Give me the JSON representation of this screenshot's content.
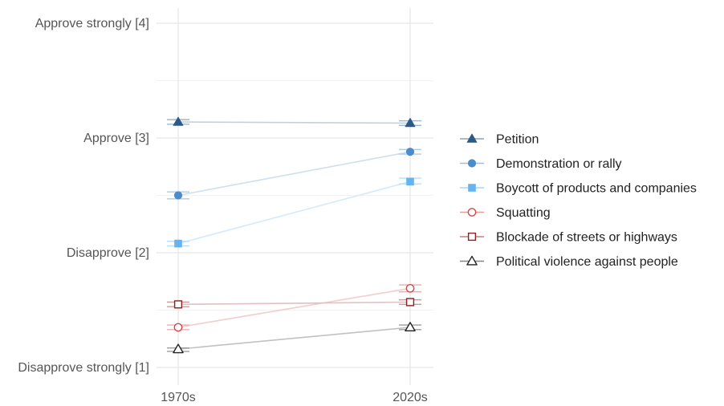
{
  "chart_data": {
    "type": "line",
    "x": [
      "1970s",
      "2020s"
    ],
    "y_ticks": [
      {
        "value": 1,
        "label": "Disapprove strongly [1]"
      },
      {
        "value": 2,
        "label": "Disapprove [2]"
      },
      {
        "value": 3,
        "label": "Approve [3]"
      },
      {
        "value": 4,
        "label": "Approve strongly [4]"
      }
    ],
    "ylim": [
      0.92,
      4.1
    ],
    "grid": true,
    "legend_position": "right",
    "error_bars": true,
    "series": [
      {
        "name": "Petition",
        "values": [
          3.14,
          3.13
        ],
        "ci": [
          [
            3.12,
            3.16
          ],
          [
            3.11,
            3.15
          ]
        ],
        "color": "#2c5a86",
        "marker": "triangle-filled"
      },
      {
        "name": "Demonstration or rally",
        "values": [
          2.5,
          2.88
        ],
        "ci": [
          [
            2.47,
            2.53
          ],
          [
            2.86,
            2.9
          ]
        ],
        "color": "#4a8ccc",
        "marker": "circle-filled"
      },
      {
        "name": "Boycott of products and companies",
        "values": [
          2.08,
          2.62
        ],
        "ci": [
          [
            2.06,
            2.1
          ],
          [
            2.6,
            2.65
          ]
        ],
        "color": "#64b4f2",
        "marker": "square-filled"
      },
      {
        "name": "Squatting",
        "values": [
          1.35,
          1.69
        ],
        "ci": [
          [
            1.33,
            1.37
          ],
          [
            1.66,
            1.72
          ]
        ],
        "color": "#d44a4a",
        "marker": "circle-open"
      },
      {
        "name": "Blockade of streets or highways",
        "values": [
          1.55,
          1.57
        ],
        "ci": [
          [
            1.53,
            1.57
          ],
          [
            1.55,
            1.59
          ]
        ],
        "color": "#8b2020",
        "marker": "square-open"
      },
      {
        "name": "Political violence against people",
        "values": [
          1.16,
          1.35
        ],
        "ci": [
          [
            1.14,
            1.17
          ],
          [
            1.33,
            1.37
          ]
        ],
        "color": "#222222",
        "marker": "triangle-open"
      }
    ]
  }
}
